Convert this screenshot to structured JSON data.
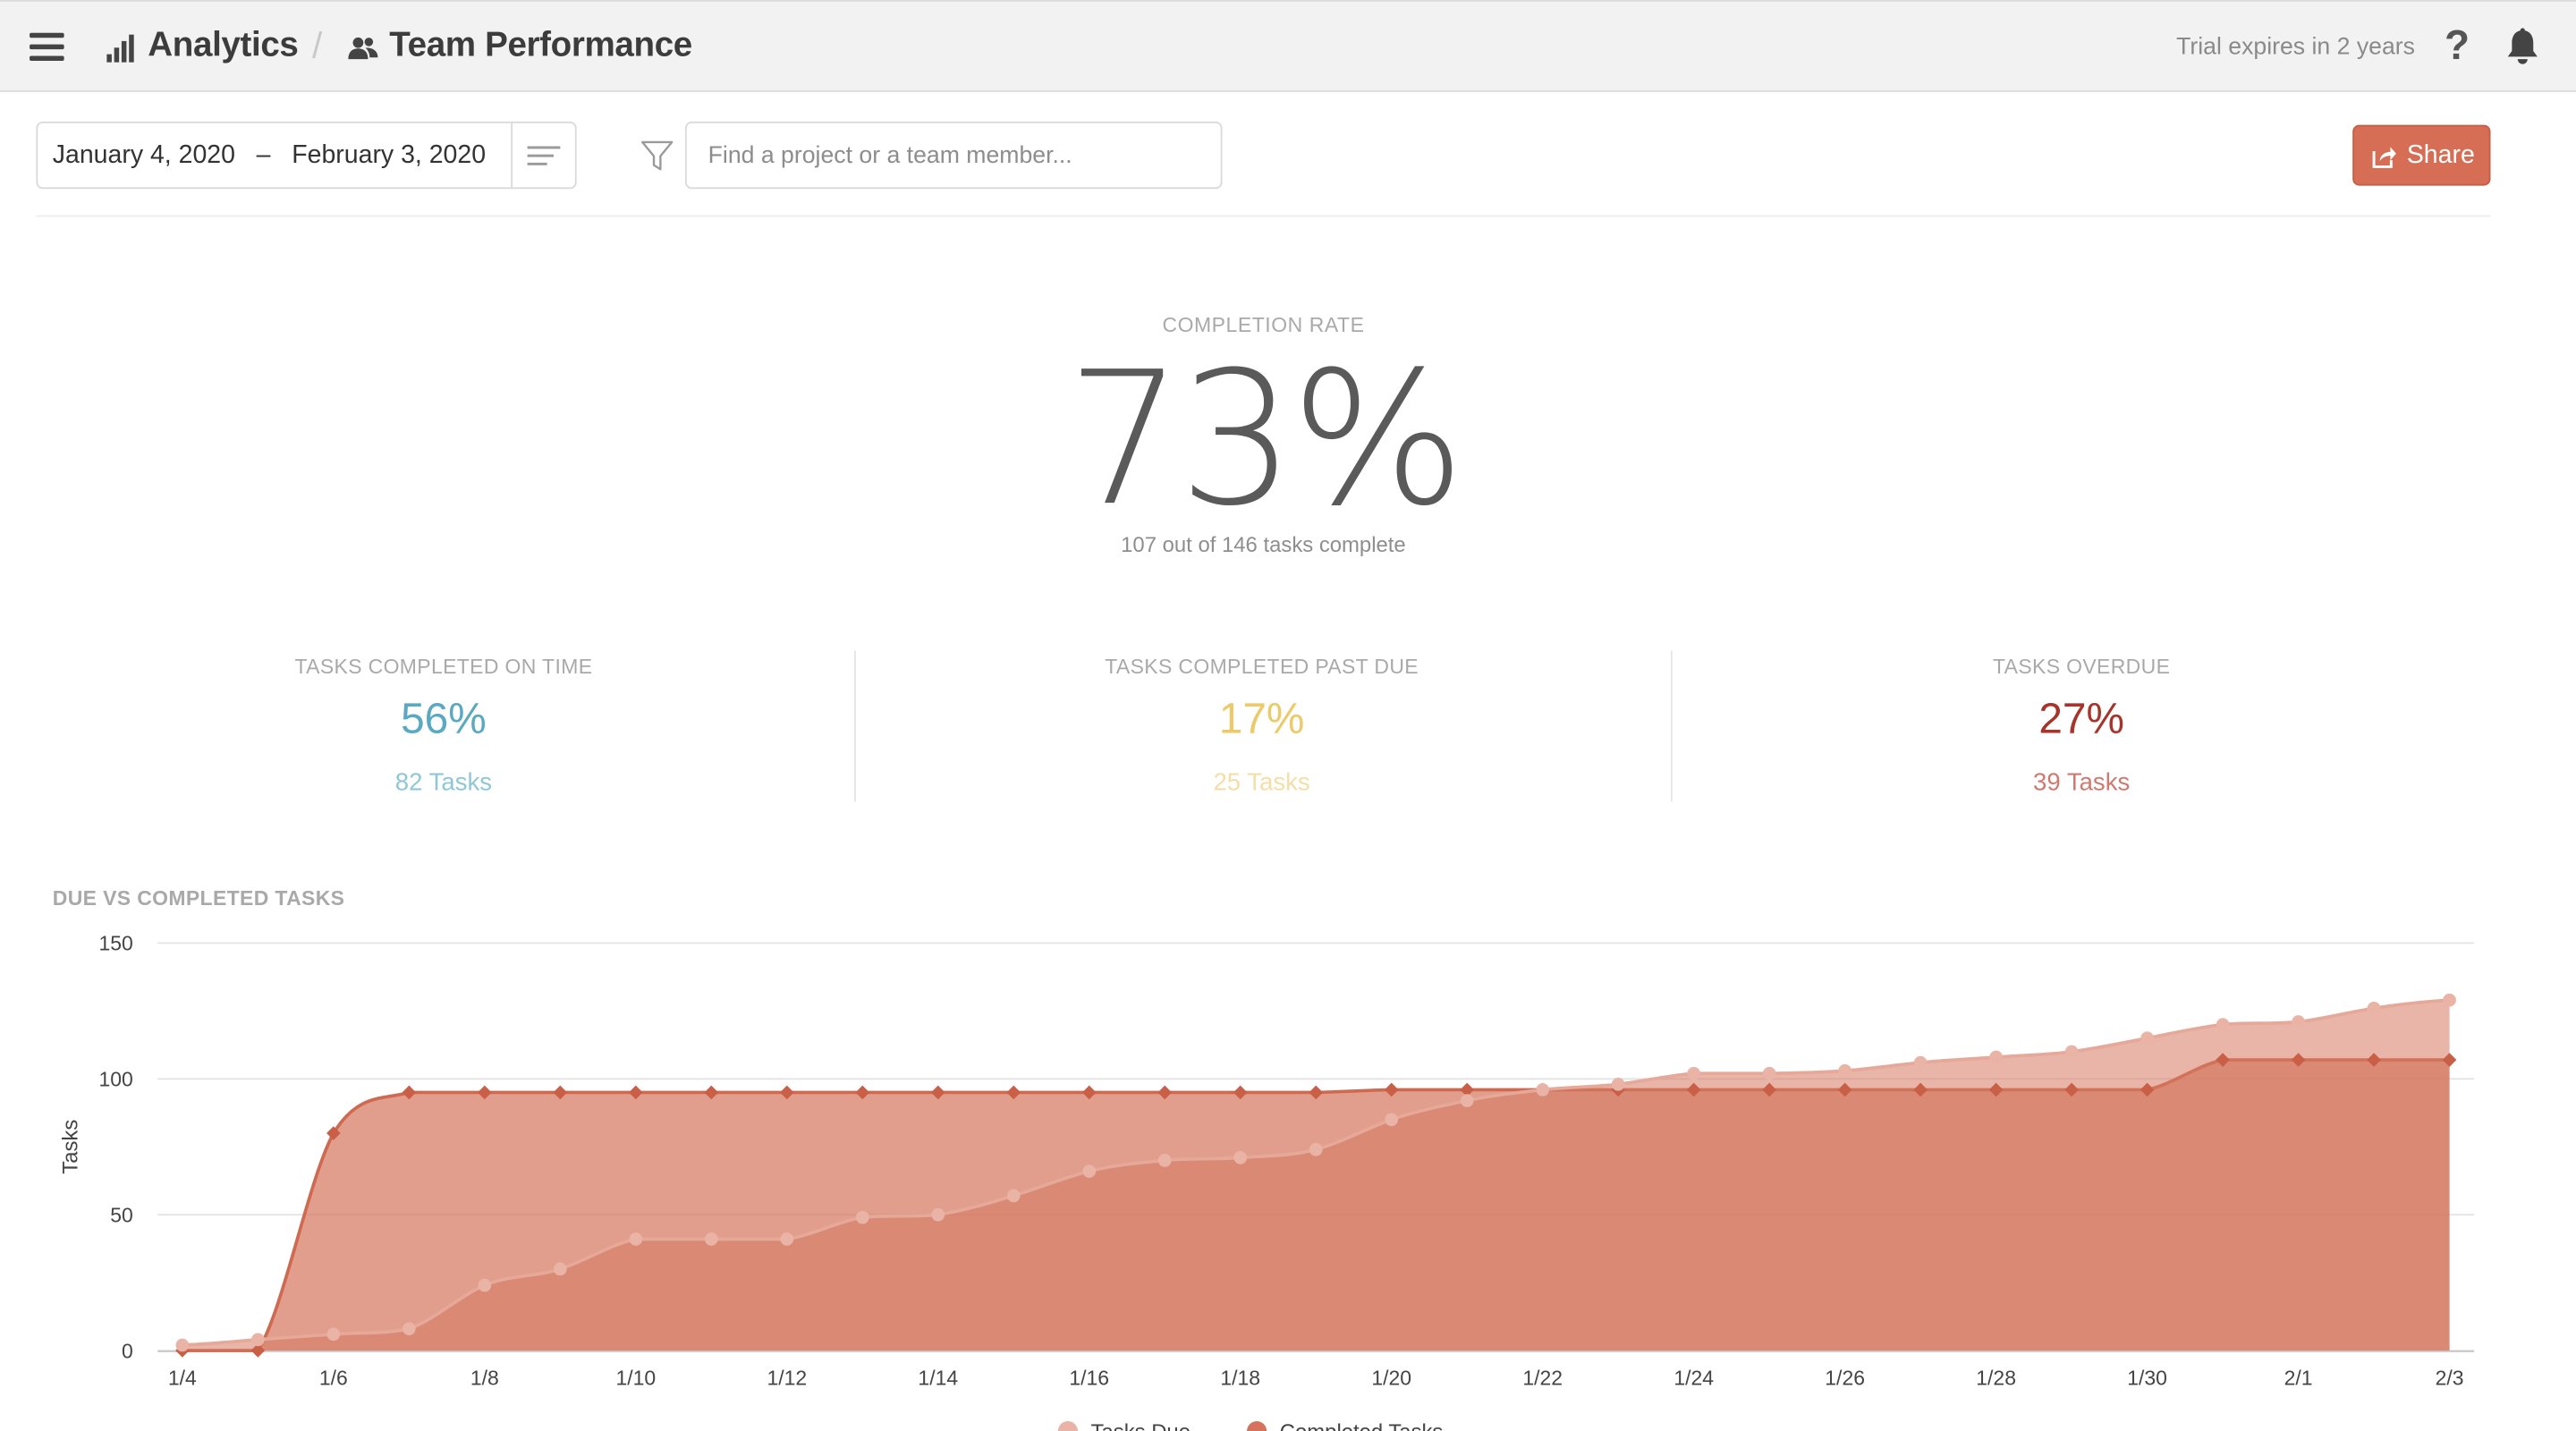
{
  "header": {
    "analytics": "Analytics",
    "separator": "/",
    "team": "Team Performance",
    "trial": "Trial expires in 2 years",
    "help": "?"
  },
  "toolbar": {
    "date_range": "January 4, 2020   –   February 3, 2020",
    "search_placeholder": "Find a project or a team member...",
    "share_label": "Share"
  },
  "completion": {
    "label": "COMPLETION RATE",
    "value": "73%",
    "subtitle": "107 out of 146 tasks complete"
  },
  "stats": [
    {
      "label": "TASKS COMPLETED ON TIME",
      "pct": "56%",
      "tasks": "82 Tasks",
      "color": "#5aa9c0",
      "sub_color": "#8ec7d7"
    },
    {
      "label": "TASKS COMPLETED PAST DUE",
      "pct": "17%",
      "tasks": "25 Tasks",
      "color": "#ecca6a",
      "sub_color": "#f3dfa6"
    },
    {
      "label": "TASKS OVERDUE",
      "pct": "27%",
      "tasks": "39 Tasks",
      "color": "#a6342a",
      "sub_color": "#cf7a71"
    }
  ],
  "chart_title": "DUE VS COMPLETED TASKS",
  "chart_data": {
    "type": "area",
    "title": "DUE VS COMPLETED TASKS",
    "ylabel": "Tasks",
    "xlabel": "",
    "ylim": [
      0,
      150
    ],
    "yticks": [
      0,
      50,
      100,
      150
    ],
    "grid": true,
    "legend": "bottom",
    "x": [
      "1/4",
      "1/5",
      "1/6",
      "1/7",
      "1/8",
      "1/9",
      "1/10",
      "1/11",
      "1/12",
      "1/13",
      "1/14",
      "1/15",
      "1/16",
      "1/17",
      "1/18",
      "1/19",
      "1/20",
      "1/21",
      "1/22",
      "1/23",
      "1/24",
      "1/25",
      "1/26",
      "1/27",
      "1/28",
      "1/29",
      "1/30",
      "1/31",
      "2/1",
      "2/2",
      "2/3"
    ],
    "xtick_labels": [
      "1/4",
      "1/6",
      "1/8",
      "1/10",
      "1/12",
      "1/14",
      "1/16",
      "1/18",
      "1/20",
      "1/22",
      "1/24",
      "1/26",
      "1/28",
      "1/30",
      "2/1",
      "2/3"
    ],
    "series": [
      {
        "name": "Tasks Due",
        "color": "#e8b4a6",
        "values": [
          2,
          4,
          6,
          8,
          24,
          30,
          41,
          41,
          41,
          49,
          50,
          57,
          66,
          70,
          71,
          74,
          85,
          92,
          96,
          98,
          102,
          102,
          103,
          106,
          108,
          110,
          115,
          120,
          121,
          126,
          129
        ]
      },
      {
        "name": "Completed Tasks",
        "color": "#d5735c",
        "values": [
          0,
          0,
          80,
          95,
          95,
          95,
          95,
          95,
          95,
          95,
          95,
          95,
          95,
          95,
          95,
          95,
          96,
          96,
          96,
          96,
          96,
          96,
          96,
          96,
          96,
          96,
          96,
          107,
          107,
          107,
          107
        ]
      }
    ]
  }
}
